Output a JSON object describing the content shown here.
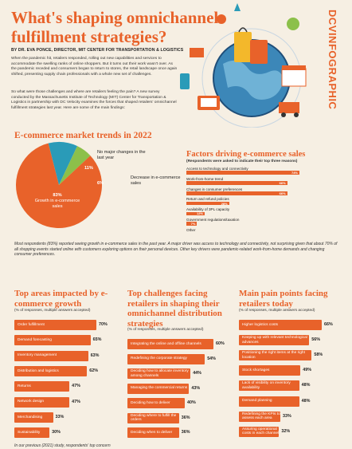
{
  "header": {
    "title": "What's shaping omnichannel fulfillment strategies?",
    "byline": "BY DR. EVA PONCE, DIRECTOR, MIT CENTER FOR TRANSPORTATION & LOGISTICS",
    "brand": "DCVINFOGRAPHIC"
  },
  "intro": {
    "p1": "When the pandemic hit, retailers responded, rolling out new capabilities and services to accommodate the swelling ranks of online shoppers. But it turns out their work wasn't over. As the pandemic receded and consumers began to return to stores, the retail landscape once again shifted, presenting supply chain professionals with a whole new set of challenges.",
    "p2": "So what were those challenges and where are retailers feeling the pain? A new survey conducted by the Massachusetts Institute of Technology (MIT) Center for Transportation & Logistics in partnership with DC Velocity examines the forces that shaped retailers' omnichannel fulfillment strategies last year. Here are some of the main findings:"
  },
  "market": {
    "title": "E-commerce market trends in 2022",
    "chart_data": {
      "type": "pie",
      "slices": [
        {
          "label": "Growth in e-commerce sales",
          "value": 83,
          "pct": "83%",
          "color": "#e8622a"
        },
        {
          "label": "No major changes in the last year",
          "value": 11,
          "pct": "11%",
          "color": "#2a9bb8"
        },
        {
          "label": "Decrease in e-commerce sales",
          "value": 6,
          "pct": "6%",
          "color": "#8cc04a"
        }
      ]
    }
  },
  "factors": {
    "title": "Factors driving e-commerce sales",
    "subtitle": "(Respondents were asked to indicate their top three reasons)",
    "chart_data": {
      "type": "bar",
      "categories": [
        "Access to technology and connectivity",
        "Work-from-home trend",
        "Changes in consumer preferences",
        "Return and refund policies",
        "Availability of 3PL capacity",
        "Government regulations/taxation",
        "Other"
      ],
      "values": [
        74,
        66,
        66,
        28,
        12,
        7,
        0
      ],
      "labels": [
        "74%",
        "66%",
        "66%",
        "28%",
        "12%",
        "7%",
        ""
      ]
    }
  },
  "note": "Most respondents (83%) reported seeing growth in e-commerce sales in the past year. A major driver was access to technology and connectivity, not surprising given that about 70% of all shopping events started online with customers exploring options on their personal devices. Other key drivers were pandemic-related work-from-home demands and changing consumer preferences.",
  "areas": {
    "title": "Top areas impacted by e-commerce growth",
    "subtitle": "(% of responses, multiple answers accepted)",
    "chart_data": {
      "type": "bar",
      "categories": [
        "Order fulfillment",
        "Demand forecasting",
        "Inventory management",
        "Distribution and logistics",
        "Returns",
        "Network design",
        "Merchandising",
        "Sustainability"
      ],
      "values": [
        70,
        65,
        63,
        62,
        47,
        47,
        33,
        30
      ],
      "labels": [
        "70%",
        "65%",
        "63%",
        "62%",
        "47%",
        "47%",
        "33%",
        "30%"
      ]
    }
  },
  "challenges": {
    "title": "Top challenges facing retailers in shaping their omnichannel distribution strategies",
    "subtitle": "(% of responses, multiple answers accepted)",
    "chart_data": {
      "type": "bar",
      "categories": [
        "Integrating the online and offline channels",
        "Redefining the corporate strategy",
        "Deciding how to allocate inventory among channels",
        "Managing the commercial returns",
        "Deciding how to deliver",
        "Deciding where to fulfill the orders",
        "Deciding when to deliver"
      ],
      "values": [
        60,
        54,
        44,
        43,
        40,
        36,
        36
      ],
      "labels": [
        "60%",
        "54%",
        "44%",
        "43%",
        "40%",
        "36%",
        "36%"
      ]
    }
  },
  "pains": {
    "title": "Main pain points facing retailers today",
    "subtitle": "(% of responses, multiple answers accepted)",
    "chart_data": {
      "type": "bar",
      "categories": [
        "Higher logistics costs",
        "Keeping up with relevant technological advances",
        "Positioning the right items at the right location",
        "Stock shortages",
        "Lack of visibility on inventory availability",
        "Demand planning",
        "Redefining the KPIs to assess each area",
        "Assuring operational costs in each channel"
      ],
      "values": [
        66,
        56,
        58,
        49,
        48,
        48,
        33,
        32
      ],
      "labels": [
        "66%",
        "56%",
        "58%",
        "49%",
        "48%",
        "48%",
        "33%",
        "32%"
      ]
    }
  },
  "footnote": "In our previous (2021) study, respondents' top concern"
}
